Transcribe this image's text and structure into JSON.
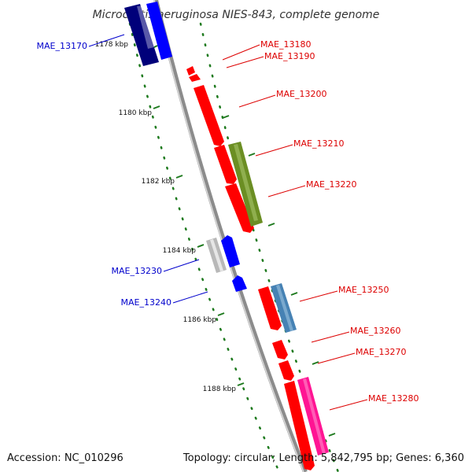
{
  "title": "Microcystis aeruginosa NIES-843, complete genome",
  "footer": {
    "accession": "Accession: NC_010296",
    "summary": "Topology: circular; Length: 5,842,795 bp; Genes: 6,360"
  },
  "colors": {
    "backbone": "#8c8c8c",
    "tick": "#1e7a1e",
    "label_red": "#dd0000",
    "label_blue": "#0000cc"
  },
  "kbp_marks": [
    "1178 kbp",
    "1180 kbp",
    "1182 kbp",
    "1184 kbp",
    "1186 kbp",
    "1188 kbp"
  ],
  "genes": [
    {
      "label": "MAE_13170",
      "color": "#0000cc",
      "fill": "#0000ff",
      "strand": "-"
    },
    {
      "label": "MAE_13180",
      "color": "#dd0000",
      "fill": "#ff0000",
      "strand": "+"
    },
    {
      "label": "MAE_13190",
      "color": "#dd0000",
      "fill": "#ff0000",
      "strand": "+"
    },
    {
      "label": "MAE_13200",
      "color": "#dd0000",
      "fill": "#ff0000",
      "strand": "+"
    },
    {
      "label": "MAE_13210",
      "color": "#dd0000",
      "fill": "#ff0000",
      "strand": "+"
    },
    {
      "label": "MAE_13220",
      "color": "#dd0000",
      "fill": "#6b8e23",
      "strand": "+"
    },
    {
      "label": "MAE_13230",
      "color": "#0000cc",
      "fill": "#0000ff",
      "strand": "-"
    },
    {
      "label": "MAE_13240",
      "color": "#0000cc",
      "fill": "#0000ff",
      "strand": "-"
    },
    {
      "label": "MAE_13250",
      "color": "#dd0000",
      "fill": "#4682b4",
      "strand": "+"
    },
    {
      "label": "MAE_13260",
      "color": "#dd0000",
      "fill": "#ff0000",
      "strand": "+"
    },
    {
      "label": "MAE_13270",
      "color": "#dd0000",
      "fill": "#ff0000",
      "strand": "+"
    },
    {
      "label": "MAE_13280",
      "color": "#dd0000",
      "fill": "#ff1493",
      "strand": "+"
    }
  ]
}
